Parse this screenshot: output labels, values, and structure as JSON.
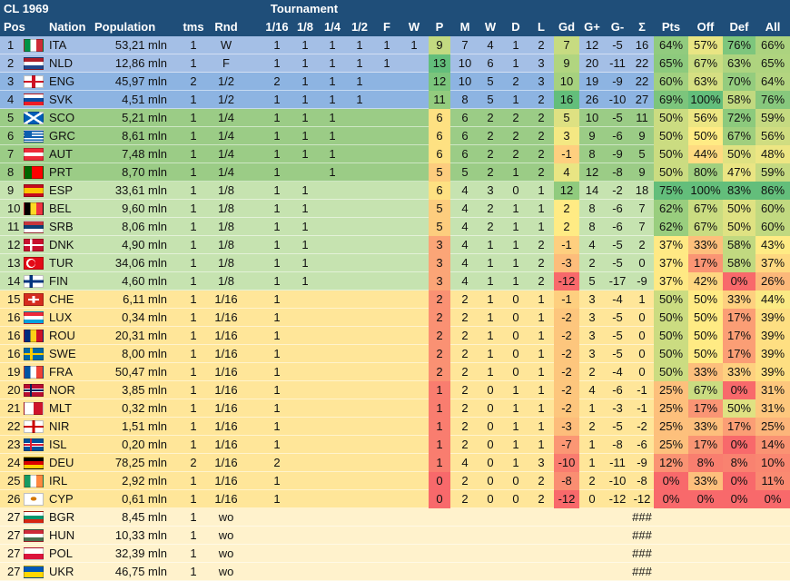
{
  "title": "CL 1969",
  "tournament_label": "Tournament",
  "columns": [
    "Pos",
    "Nation",
    "Population",
    "tms",
    "Rnd",
    "1/16",
    "1/8",
    "1/4",
    "1/2",
    "F",
    "W",
    "P",
    "M",
    "W",
    "D",
    "L",
    "Gd",
    "G+",
    "G-",
    "Σ",
    "Pts",
    "Off",
    "Def",
    "All"
  ],
  "colors": {
    "header": "#1f4e79",
    "tier_final": "#a4bfe6",
    "tier_semi": "#8db4e2",
    "tier_quarter": "#9bcc86",
    "tier_r16": "#c6e3b0",
    "tier_r32": "#ffe699",
    "tier_wo": "#fff2cc",
    "heat_green": "#63be7b",
    "heat_yellow": "#ffeb84",
    "heat_red": "#f8696b"
  },
  "rows": [
    {
      "pos": "1",
      "nation": "ITA",
      "flag": "italy-flag",
      "population": "53,21 mln",
      "tms": "1",
      "rnd": "W",
      "t116": "1",
      "t18": "1",
      "t14": "1",
      "t12": "1",
      "tf": "1",
      "tw": "1",
      "p": "9",
      "m": "7",
      "w": "4",
      "d": "1",
      "l": "2",
      "gd": "7",
      "gp": "12",
      "gm": "-5",
      "sum": "16",
      "pts": "64%",
      "off": "57%",
      "def": "76%",
      "all": "66%"
    },
    {
      "pos": "2",
      "nation": "NLD",
      "flag": "netherlands-flag",
      "population": "12,86 mln",
      "tms": "1",
      "rnd": "F",
      "t116": "1",
      "t18": "1",
      "t14": "1",
      "t12": "1",
      "tf": "1",
      "tw": "",
      "p": "13",
      "m": "10",
      "w": "6",
      "d": "1",
      "l": "3",
      "gd": "9",
      "gp": "20",
      "gm": "-11",
      "sum": "22",
      "pts": "65%",
      "off": "67%",
      "def": "63%",
      "all": "65%"
    },
    {
      "pos": "3",
      "nation": "ENG",
      "flag": "england-flag",
      "population": "45,97 mln",
      "tms": "2",
      "rnd": "1/2",
      "t116": "2",
      "t18": "1",
      "t14": "1",
      "t12": "1",
      "tf": "",
      "tw": "",
      "p": "12",
      "m": "10",
      "w": "5",
      "d": "2",
      "l": "3",
      "gd": "10",
      "gp": "19",
      "gm": "-9",
      "sum": "22",
      "pts": "60%",
      "off": "63%",
      "def": "70%",
      "all": "64%"
    },
    {
      "pos": "4",
      "nation": "SVK",
      "flag": "slovakia-flag",
      "population": "4,51 mln",
      "tms": "1",
      "rnd": "1/2",
      "t116": "1",
      "t18": "1",
      "t14": "1",
      "t12": "1",
      "tf": "",
      "tw": "",
      "p": "11",
      "m": "8",
      "w": "5",
      "d": "1",
      "l": "2",
      "gd": "16",
      "gp": "26",
      "gm": "-10",
      "sum": "27",
      "pts": "69%",
      "off": "100%",
      "def": "58%",
      "all": "76%"
    },
    {
      "pos": "5",
      "nation": "SCO",
      "flag": "scotland-flag",
      "population": "5,21 mln",
      "tms": "1",
      "rnd": "1/4",
      "t116": "1",
      "t18": "1",
      "t14": "1",
      "t12": "",
      "tf": "",
      "tw": "",
      "p": "6",
      "m": "6",
      "w": "2",
      "d": "2",
      "l": "2",
      "gd": "5",
      "gp": "10",
      "gm": "-5",
      "sum": "11",
      "pts": "50%",
      "off": "56%",
      "def": "72%",
      "all": "59%"
    },
    {
      "pos": "6",
      "nation": "GRC",
      "flag": "greece-flag",
      "population": "8,61 mln",
      "tms": "1",
      "rnd": "1/4",
      "t116": "1",
      "t18": "1",
      "t14": "1",
      "t12": "",
      "tf": "",
      "tw": "",
      "p": "6",
      "m": "6",
      "w": "2",
      "d": "2",
      "l": "2",
      "gd": "3",
      "gp": "9",
      "gm": "-6",
      "sum": "9",
      "pts": "50%",
      "off": "50%",
      "def": "67%",
      "all": "56%"
    },
    {
      "pos": "7",
      "nation": "AUT",
      "flag": "austria-flag",
      "population": "7,48 mln",
      "tms": "1",
      "rnd": "1/4",
      "t116": "1",
      "t18": "1",
      "t14": "1",
      "t12": "",
      "tf": "",
      "tw": "",
      "p": "6",
      "m": "6",
      "w": "2",
      "d": "2",
      "l": "2",
      "gd": "-1",
      "gp": "8",
      "gm": "-9",
      "sum": "5",
      "pts": "50%",
      "off": "44%",
      "def": "50%",
      "all": "48%"
    },
    {
      "pos": "8",
      "nation": "PRT",
      "flag": "portugal-flag",
      "population": "8,70 mln",
      "tms": "1",
      "rnd": "1/4",
      "t116": "1",
      "t18": "",
      "t14": "1",
      "t12": "",
      "tf": "",
      "tw": "",
      "p": "5",
      "m": "5",
      "w": "2",
      "d": "1",
      "l": "2",
      "gd": "4",
      "gp": "12",
      "gm": "-8",
      "sum": "9",
      "pts": "50%",
      "off": "80%",
      "def": "47%",
      "all": "59%"
    },
    {
      "pos": "9",
      "nation": "ESP",
      "flag": "spain-flag",
      "population": "33,61 mln",
      "tms": "1",
      "rnd": "1/8",
      "t116": "1",
      "t18": "1",
      "t14": "",
      "t12": "",
      "tf": "",
      "tw": "",
      "p": "6",
      "m": "4",
      "w": "3",
      "d": "0",
      "l": "1",
      "gd": "12",
      "gp": "14",
      "gm": "-2",
      "sum": "18",
      "pts": "75%",
      "off": "100%",
      "def": "83%",
      "all": "86%"
    },
    {
      "pos": "10",
      "nation": "BEL",
      "flag": "belgium-flag",
      "population": "9,60 mln",
      "tms": "1",
      "rnd": "1/8",
      "t116": "1",
      "t18": "1",
      "t14": "",
      "t12": "",
      "tf": "",
      "tw": "",
      "p": "5",
      "m": "4",
      "w": "2",
      "d": "1",
      "l": "1",
      "gd": "2",
      "gp": "8",
      "gm": "-6",
      "sum": "7",
      "pts": "62%",
      "off": "67%",
      "def": "50%",
      "all": "60%"
    },
    {
      "pos": "11",
      "nation": "SRB",
      "flag": "serbia-flag",
      "population": "8,06 mln",
      "tms": "1",
      "rnd": "1/8",
      "t116": "1",
      "t18": "1",
      "t14": "",
      "t12": "",
      "tf": "",
      "tw": "",
      "p": "5",
      "m": "4",
      "w": "2",
      "d": "1",
      "l": "1",
      "gd": "2",
      "gp": "8",
      "gm": "-6",
      "sum": "7",
      "pts": "62%",
      "off": "67%",
      "def": "50%",
      "all": "60%"
    },
    {
      "pos": "12",
      "nation": "DNK",
      "flag": "denmark-flag",
      "population": "4,90 mln",
      "tms": "1",
      "rnd": "1/8",
      "t116": "1",
      "t18": "1",
      "t14": "",
      "t12": "",
      "tf": "",
      "tw": "",
      "p": "3",
      "m": "4",
      "w": "1",
      "d": "1",
      "l": "2",
      "gd": "-1",
      "gp": "4",
      "gm": "-5",
      "sum": "2",
      "pts": "37%",
      "off": "33%",
      "def": "58%",
      "all": "43%"
    },
    {
      "pos": "13",
      "nation": "TUR",
      "flag": "turkey-flag",
      "population": "34,06 mln",
      "tms": "1",
      "rnd": "1/8",
      "t116": "1",
      "t18": "1",
      "t14": "",
      "t12": "",
      "tf": "",
      "tw": "",
      "p": "3",
      "m": "4",
      "w": "1",
      "d": "1",
      "l": "2",
      "gd": "-3",
      "gp": "2",
      "gm": "-5",
      "sum": "0",
      "pts": "37%",
      "off": "17%",
      "def": "58%",
      "all": "37%"
    },
    {
      "pos": "14",
      "nation": "FIN",
      "flag": "finland-flag",
      "population": "4,60 mln",
      "tms": "1",
      "rnd": "1/8",
      "t116": "1",
      "t18": "1",
      "t14": "",
      "t12": "",
      "tf": "",
      "tw": "",
      "p": "3",
      "m": "4",
      "w": "1",
      "d": "1",
      "l": "2",
      "gd": "-12",
      "gp": "5",
      "gm": "-17",
      "sum": "-9",
      "pts": "37%",
      "off": "42%",
      "def": "0%",
      "all": "26%"
    },
    {
      "pos": "15",
      "nation": "CHE",
      "flag": "switzerland-flag",
      "population": "6,11 mln",
      "tms": "1",
      "rnd": "1/16",
      "t116": "1",
      "t18": "",
      "t14": "",
      "t12": "",
      "tf": "",
      "tw": "",
      "p": "2",
      "m": "2",
      "w": "1",
      "d": "0",
      "l": "1",
      "gd": "-1",
      "gp": "3",
      "gm": "-4",
      "sum": "1",
      "pts": "50%",
      "off": "50%",
      "def": "33%",
      "all": "44%"
    },
    {
      "pos": "16",
      "nation": "LUX",
      "flag": "luxembourg-flag",
      "population": "0,34 mln",
      "tms": "1",
      "rnd": "1/16",
      "t116": "1",
      "t18": "",
      "t14": "",
      "t12": "",
      "tf": "",
      "tw": "",
      "p": "2",
      "m": "2",
      "w": "1",
      "d": "0",
      "l": "1",
      "gd": "-2",
      "gp": "3",
      "gm": "-5",
      "sum": "0",
      "pts": "50%",
      "off": "50%",
      "def": "17%",
      "all": "39%"
    },
    {
      "pos": "16",
      "nation": "ROU",
      "flag": "romania-flag",
      "population": "20,31 mln",
      "tms": "1",
      "rnd": "1/16",
      "t116": "1",
      "t18": "",
      "t14": "",
      "t12": "",
      "tf": "",
      "tw": "",
      "p": "2",
      "m": "2",
      "w": "1",
      "d": "0",
      "l": "1",
      "gd": "-2",
      "gp": "3",
      "gm": "-5",
      "sum": "0",
      "pts": "50%",
      "off": "50%",
      "def": "17%",
      "all": "39%"
    },
    {
      "pos": "16",
      "nation": "SWE",
      "flag": "sweden-flag",
      "population": "8,00 mln",
      "tms": "1",
      "rnd": "1/16",
      "t116": "1",
      "t18": "",
      "t14": "",
      "t12": "",
      "tf": "",
      "tw": "",
      "p": "2",
      "m": "2",
      "w": "1",
      "d": "0",
      "l": "1",
      "gd": "-2",
      "gp": "3",
      "gm": "-5",
      "sum": "0",
      "pts": "50%",
      "off": "50%",
      "def": "17%",
      "all": "39%"
    },
    {
      "pos": "19",
      "nation": "FRA",
      "flag": "france-flag",
      "population": "50,47 mln",
      "tms": "1",
      "rnd": "1/16",
      "t116": "1",
      "t18": "",
      "t14": "",
      "t12": "",
      "tf": "",
      "tw": "",
      "p": "2",
      "m": "2",
      "w": "1",
      "d": "0",
      "l": "1",
      "gd": "-2",
      "gp": "2",
      "gm": "-4",
      "sum": "0",
      "pts": "50%",
      "off": "33%",
      "def": "33%",
      "all": "39%"
    },
    {
      "pos": "20",
      "nation": "NOR",
      "flag": "norway-flag",
      "population": "3,85 mln",
      "tms": "1",
      "rnd": "1/16",
      "t116": "1",
      "t18": "",
      "t14": "",
      "t12": "",
      "tf": "",
      "tw": "",
      "p": "1",
      "m": "2",
      "w": "0",
      "d": "1",
      "l": "1",
      "gd": "-2",
      "gp": "4",
      "gm": "-6",
      "sum": "-1",
      "pts": "25%",
      "off": "67%",
      "def": "0%",
      "all": "31%"
    },
    {
      "pos": "21",
      "nation": "MLT",
      "flag": "malta-flag",
      "population": "0,32 mln",
      "tms": "1",
      "rnd": "1/16",
      "t116": "1",
      "t18": "",
      "t14": "",
      "t12": "",
      "tf": "",
      "tw": "",
      "p": "1",
      "m": "2",
      "w": "0",
      "d": "1",
      "l": "1",
      "gd": "-2",
      "gp": "1",
      "gm": "-3",
      "sum": "-1",
      "pts": "25%",
      "off": "17%",
      "def": "50%",
      "all": "31%"
    },
    {
      "pos": "22",
      "nation": "NIR",
      "flag": "northern-ireland-flag",
      "population": "1,51 mln",
      "tms": "1",
      "rnd": "1/16",
      "t116": "1",
      "t18": "",
      "t14": "",
      "t12": "",
      "tf": "",
      "tw": "",
      "p": "1",
      "m": "2",
      "w": "0",
      "d": "1",
      "l": "1",
      "gd": "-3",
      "gp": "2",
      "gm": "-5",
      "sum": "-2",
      "pts": "25%",
      "off": "33%",
      "def": "17%",
      "all": "25%"
    },
    {
      "pos": "23",
      "nation": "ISL",
      "flag": "iceland-flag",
      "population": "0,20 mln",
      "tms": "1",
      "rnd": "1/16",
      "t116": "1",
      "t18": "",
      "t14": "",
      "t12": "",
      "tf": "",
      "tw": "",
      "p": "1",
      "m": "2",
      "w": "0",
      "d": "1",
      "l": "1",
      "gd": "-7",
      "gp": "1",
      "gm": "-8",
      "sum": "-6",
      "pts": "25%",
      "off": "17%",
      "def": "0%",
      "all": "14%"
    },
    {
      "pos": "24",
      "nation": "DEU",
      "flag": "germany-flag",
      "population": "78,25 mln",
      "tms": "2",
      "rnd": "1/16",
      "t116": "2",
      "t18": "",
      "t14": "",
      "t12": "",
      "tf": "",
      "tw": "",
      "p": "1",
      "m": "4",
      "w": "0",
      "d": "1",
      "l": "3",
      "gd": "-10",
      "gp": "1",
      "gm": "-11",
      "sum": "-9",
      "pts": "12%",
      "off": "8%",
      "def": "8%",
      "all": "10%"
    },
    {
      "pos": "25",
      "nation": "IRL",
      "flag": "ireland-flag",
      "population": "2,92 mln",
      "tms": "1",
      "rnd": "1/16",
      "t116": "1",
      "t18": "",
      "t14": "",
      "t12": "",
      "tf": "",
      "tw": "",
      "p": "0",
      "m": "2",
      "w": "0",
      "d": "0",
      "l": "2",
      "gd": "-8",
      "gp": "2",
      "gm": "-10",
      "sum": "-8",
      "pts": "0%",
      "off": "33%",
      "def": "0%",
      "all": "11%"
    },
    {
      "pos": "26",
      "nation": "CYP",
      "flag": "cyprus-flag",
      "population": "0,61 mln",
      "tms": "1",
      "rnd": "1/16",
      "t116": "1",
      "t18": "",
      "t14": "",
      "t12": "",
      "tf": "",
      "tw": "",
      "p": "0",
      "m": "2",
      "w": "0",
      "d": "0",
      "l": "2",
      "gd": "-12",
      "gp": "0",
      "gm": "-12",
      "sum": "-12",
      "pts": "0%",
      "off": "0%",
      "def": "0%",
      "all": "0%"
    },
    {
      "pos": "27",
      "nation": "BGR",
      "flag": "bulgaria-flag",
      "population": "8,45 mln",
      "tms": "1",
      "rnd": "wo",
      "t116": "",
      "t18": "",
      "t14": "",
      "t12": "",
      "tf": "",
      "tw": "",
      "p": "",
      "m": "",
      "w": "",
      "d": "",
      "l": "",
      "gd": "",
      "gp": "",
      "gm": "",
      "sum": "###",
      "pts": "",
      "off": "",
      "def": "",
      "all": ""
    },
    {
      "pos": "27",
      "nation": "HUN",
      "flag": "hungary-flag",
      "population": "10,33 mln",
      "tms": "1",
      "rnd": "wo",
      "t116": "",
      "t18": "",
      "t14": "",
      "t12": "",
      "tf": "",
      "tw": "",
      "p": "",
      "m": "",
      "w": "",
      "d": "",
      "l": "",
      "gd": "",
      "gp": "",
      "gm": "",
      "sum": "###",
      "pts": "",
      "off": "",
      "def": "",
      "all": ""
    },
    {
      "pos": "27",
      "nation": "POL",
      "flag": "poland-flag",
      "population": "32,39 mln",
      "tms": "1",
      "rnd": "wo",
      "t116": "",
      "t18": "",
      "t14": "",
      "t12": "",
      "tf": "",
      "tw": "",
      "p": "",
      "m": "",
      "w": "",
      "d": "",
      "l": "",
      "gd": "",
      "gp": "",
      "gm": "",
      "sum": "###",
      "pts": "",
      "off": "",
      "def": "",
      "all": ""
    },
    {
      "pos": "27",
      "nation": "UKR",
      "flag": "ukraine-flag",
      "population": "46,75 mln",
      "tms": "1",
      "rnd": "wo",
      "t116": "",
      "t18": "",
      "t14": "",
      "t12": "",
      "tf": "",
      "tw": "",
      "p": "",
      "m": "",
      "w": "",
      "d": "",
      "l": "",
      "gd": "",
      "gp": "",
      "gm": "",
      "sum": "###",
      "pts": "",
      "off": "",
      "def": "",
      "all": ""
    }
  ]
}
